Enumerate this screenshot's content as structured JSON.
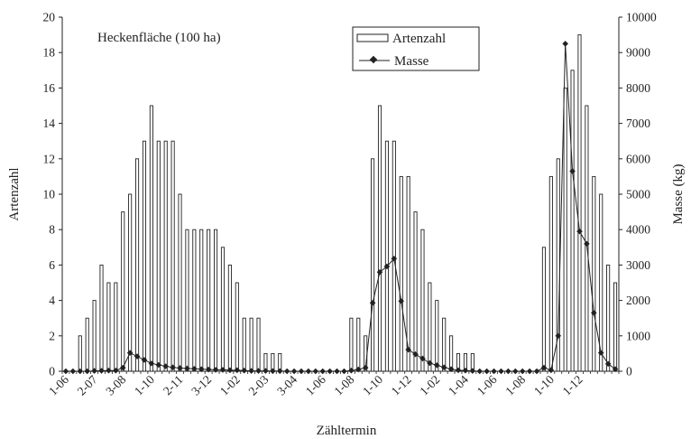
{
  "chart_data": {
    "type": "bar",
    "annotation": "Heckenfläche (100 ha)",
    "xlabel": "Zähltermin",
    "ylabel_left": "Artenzahl",
    "ylabel_right": "Masse (kg)",
    "ylim_left": [
      0,
      20
    ],
    "ylim_right": [
      0,
      10000
    ],
    "yticks_left": [
      "0",
      "2",
      "4",
      "6",
      "8",
      "10",
      "12",
      "14",
      "16",
      "18",
      "20"
    ],
    "yticks_right": [
      "0",
      "1000",
      "2000",
      "3000",
      "4000",
      "5000",
      "6000",
      "7000",
      "8000",
      "9000",
      "10000"
    ],
    "x_tick_labels": [
      "1-06",
      "2-07",
      "3-08",
      "1-10",
      "2-11",
      "3-12",
      "1-02",
      "2-03",
      "3-04",
      "1-06",
      "1-08",
      "1-10",
      "1-12",
      "1-02",
      "1-04",
      "1-06",
      "1-08",
      "1-10",
      "1-12"
    ],
    "grid": false,
    "legend_position": "top-center",
    "series": [
      {
        "name": "Artenzahl",
        "kind": "bar",
        "axis": "left",
        "values": [
          0,
          0,
          2,
          3,
          4,
          6,
          5,
          5,
          9,
          10,
          12,
          13,
          15,
          13,
          13,
          13,
          10,
          8,
          8,
          8,
          8,
          8,
          7,
          6,
          5,
          3,
          3,
          3,
          1,
          1,
          1,
          0,
          0,
          0,
          0,
          0,
          0,
          0,
          0,
          0,
          3,
          3,
          2,
          12,
          15,
          13,
          13,
          11,
          11,
          9,
          8,
          5,
          4,
          3,
          2,
          1,
          1,
          1,
          0,
          0,
          0,
          0,
          0,
          0,
          0,
          0,
          0,
          7,
          11,
          12,
          16,
          17,
          19,
          15,
          11,
          10,
          6,
          5
        ]
      },
      {
        "name": "Masse",
        "kind": "line",
        "axis": "right",
        "values": [
          0,
          0,
          0,
          0,
          10,
          15,
          20,
          20,
          100,
          520,
          420,
          320,
          220,
          180,
          140,
          110,
          90,
          80,
          70,
          60,
          50,
          40,
          40,
          30,
          30,
          20,
          10,
          10,
          10,
          5,
          5,
          0,
          0,
          0,
          0,
          0,
          0,
          0,
          0,
          0,
          20,
          50,
          100,
          1930,
          2800,
          2960,
          3180,
          1980,
          610,
          480,
          360,
          230,
          170,
          110,
          60,
          30,
          20,
          10,
          0,
          0,
          0,
          0,
          0,
          0,
          0,
          0,
          0,
          100,
          30,
          1000,
          9250,
          5650,
          3950,
          3600,
          1650,
          520,
          210,
          60
        ]
      }
    ]
  }
}
